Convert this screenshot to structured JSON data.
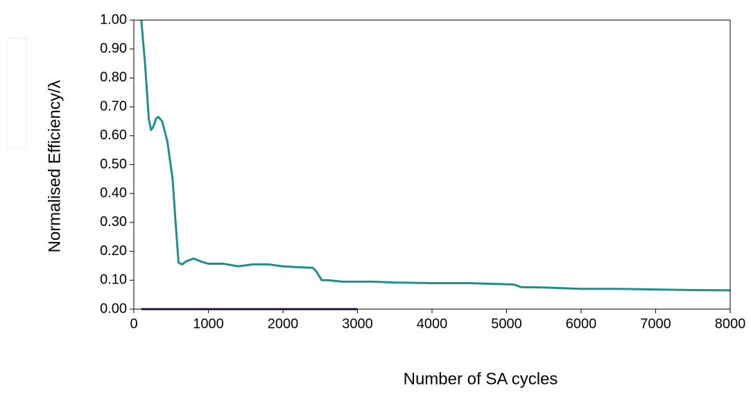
{
  "chart_data": {
    "type": "line",
    "xlabel": "Number of SA cycles",
    "ylabel": "Normalised Efficiency/λ",
    "xlim": [
      0,
      8000
    ],
    "xticks": [
      0,
      1000,
      2000,
      3000,
      4000,
      5000,
      6000,
      7000,
      8000
    ],
    "ylim": [
      0,
      1
    ],
    "yticks": [
      {
        "value": 0,
        "label": "0.00"
      },
      {
        "value": 0.1,
        "label": "0.10"
      },
      {
        "value": 0.2,
        "label": "0.20"
      },
      {
        "value": 0.3,
        "label": "0.30"
      },
      {
        "value": 0.4,
        "label": "0.40"
      },
      {
        "value": 0.5,
        "label": "0.50"
      },
      {
        "value": 0.6,
        "label": "0.60"
      },
      {
        "value": 0.7,
        "label": "0.70"
      },
      {
        "value": 0.8,
        "label": "0.80"
      },
      {
        "value": 0.9,
        "label": "0.90"
      },
      {
        "value": 1,
        "label": "1.00"
      }
    ],
    "series": [
      {
        "color": "#1e8f8f",
        "x": [
          100,
          150,
          200,
          230,
          260,
          300,
          330,
          380,
          450,
          520,
          560,
          600,
          650,
          700,
          800,
          900,
          1000,
          1200,
          1400,
          1600,
          1800,
          2000,
          2200,
          2400,
          2450,
          2520,
          2600,
          2800,
          3000,
          3200,
          3500,
          4000,
          4500,
          5000,
          5100,
          5200,
          5500,
          6000,
          6500,
          7000,
          7500,
          8000
        ],
        "values": [
          1.0,
          0.85,
          0.66,
          0.62,
          0.63,
          0.66,
          0.665,
          0.65,
          0.58,
          0.45,
          0.3,
          0.16,
          0.155,
          0.165,
          0.175,
          0.165,
          0.157,
          0.157,
          0.148,
          0.155,
          0.155,
          0.148,
          0.145,
          0.143,
          0.13,
          0.1,
          0.1,
          0.095,
          0.095,
          0.095,
          0.092,
          0.09,
          0.09,
          0.086,
          0.085,
          0.076,
          0.075,
          0.07,
          0.07,
          0.068,
          0.066,
          0.065
        ]
      },
      {
        "color": "#3d1a5e",
        "x": [
          100,
          3000
        ],
        "values": [
          0,
          0
        ]
      }
    ]
  }
}
